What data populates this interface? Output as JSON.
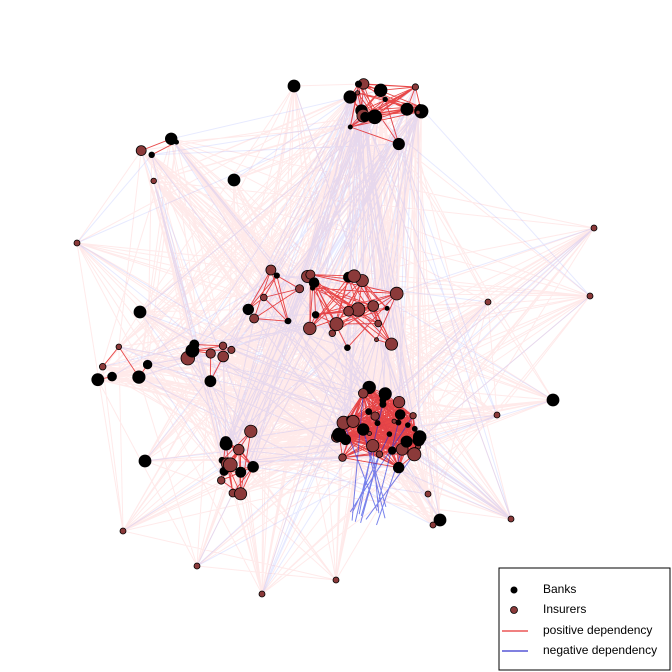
{
  "legend": {
    "items": [
      {
        "label": "Banks"
      },
      {
        "label": "Insurers"
      },
      {
        "label": "positive dependency"
      },
      {
        "label": "negative dependency"
      }
    ]
  }
}
